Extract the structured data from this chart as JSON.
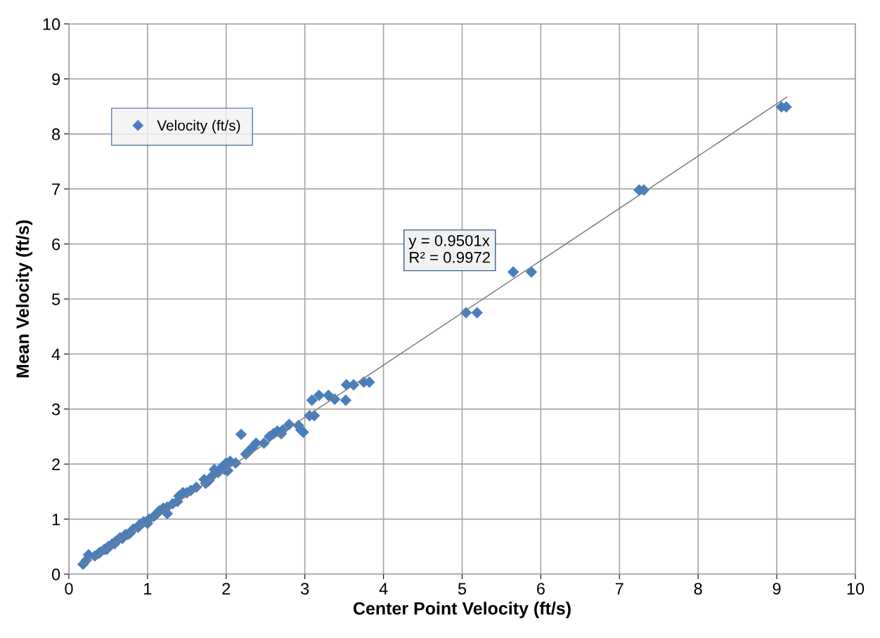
{
  "chart_data": {
    "type": "scatter",
    "xlabel": "Center Point Velocity (ft/s)",
    "ylabel": "Mean Velocity (ft/s)",
    "xlim": [
      0,
      10
    ],
    "ylim": [
      0,
      10
    ],
    "xticks": [
      0,
      1,
      2,
      3,
      4,
      5,
      6,
      7,
      8,
      9,
      10
    ],
    "yticks": [
      0,
      1,
      2,
      3,
      4,
      5,
      6,
      7,
      8,
      9,
      10
    ],
    "grid": true,
    "legend": "top left",
    "marker": "diamond",
    "annotations": [
      "y = 0.9501x\nR² = 0.9972"
    ],
    "series": [
      {
        "name": "Velocity (ft/s)",
        "color": "#4a7ebb",
        "x": [
          9.06,
          9.12,
          7.25,
          7.31,
          5.65,
          5.88,
          5.05,
          5.19,
          3.53,
          3.62,
          3.75,
          3.82,
          3.52,
          3.38,
          3.3,
          3.18,
          3.09,
          3.12,
          3.06,
          2.98,
          2.95,
          2.92,
          2.8,
          2.72,
          2.7,
          2.65,
          2.6,
          2.55,
          2.48,
          2.38,
          2.33,
          2.28,
          2.25,
          2.19,
          2.12,
          2.05,
          2.0,
          1.98,
          2.02,
          1.95,
          1.9,
          1.85,
          1.82,
          1.78,
          1.74,
          1.72,
          1.62,
          1.55,
          1.5,
          1.45,
          1.4,
          1.38,
          1.32,
          1.25,
          1.25,
          1.2,
          1.15,
          1.12,
          1.08,
          1.02,
          1.0,
          0.95,
          0.9,
          0.88,
          0.82,
          0.78,
          0.75,
          0.72,
          0.68,
          0.65,
          0.6,
          0.58,
          0.55,
          0.5,
          0.48,
          0.45,
          0.4,
          0.38,
          0.33,
          0.25,
          0.22,
          0.18
        ],
        "values": [
          8.49,
          8.49,
          6.98,
          6.98,
          5.49,
          5.49,
          4.75,
          4.75,
          3.44,
          3.44,
          3.49,
          3.49,
          3.16,
          3.18,
          3.25,
          3.25,
          3.16,
          2.88,
          2.88,
          2.58,
          2.62,
          2.7,
          2.72,
          2.62,
          2.55,
          2.6,
          2.55,
          2.5,
          2.38,
          2.38,
          2.3,
          2.22,
          2.18,
          2.54,
          2.02,
          2.05,
          2.02,
          1.9,
          1.88,
          1.95,
          1.85,
          1.9,
          1.78,
          1.7,
          1.65,
          1.72,
          1.58,
          1.52,
          1.48,
          1.48,
          1.42,
          1.32,
          1.28,
          1.22,
          1.1,
          1.2,
          1.15,
          1.1,
          1.05,
          1.0,
          0.92,
          0.95,
          0.9,
          0.85,
          0.82,
          0.75,
          0.72,
          0.72,
          0.65,
          0.66,
          0.6,
          0.55,
          0.55,
          0.5,
          0.45,
          0.45,
          0.4,
          0.38,
          0.33,
          0.35,
          0.25,
          0.18
        ]
      },
      {
        "type": "line",
        "color": "#7f7f7f",
        "marker": "none",
        "x": [
          0.18,
          9.13
        ],
        "values": [
          0.17,
          8.67
        ]
      }
    ]
  }
}
